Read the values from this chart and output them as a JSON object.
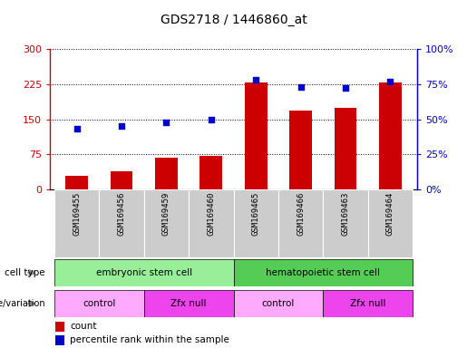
{
  "title": "GDS2718 / 1446860_at",
  "samples": [
    "GSM169455",
    "GSM169456",
    "GSM169459",
    "GSM169460",
    "GSM169465",
    "GSM169466",
    "GSM169463",
    "GSM169464"
  ],
  "counts": [
    30,
    38,
    68,
    72,
    228,
    168,
    175,
    228
  ],
  "percentile_ranks": [
    43,
    45,
    48,
    50,
    78,
    73,
    72,
    77
  ],
  "ylim_left": [
    0,
    300
  ],
  "ylim_right": [
    0,
    100
  ],
  "yticks_left": [
    0,
    75,
    150,
    225,
    300
  ],
  "yticks_right": [
    0,
    25,
    50,
    75,
    100
  ],
  "ytick_labels_left": [
    "0",
    "75",
    "150",
    "225",
    "300"
  ],
  "ytick_labels_right": [
    "0%",
    "25%",
    "50%",
    "75%",
    "100%"
  ],
  "bar_color": "#cc0000",
  "dot_color": "#0000cc",
  "cell_type_groups": [
    {
      "label": "embryonic stem cell",
      "start": 0,
      "end": 3,
      "color": "#99ee99"
    },
    {
      "label": "hematopoietic stem cell",
      "start": 4,
      "end": 7,
      "color": "#55cc55"
    }
  ],
  "genotype_groups": [
    {
      "label": "control",
      "start": 0,
      "end": 1,
      "color": "#ffaaff"
    },
    {
      "label": "Zfx null",
      "start": 2,
      "end": 3,
      "color": "#ee44ee"
    },
    {
      "label": "control",
      "start": 4,
      "end": 5,
      "color": "#ffaaff"
    },
    {
      "label": "Zfx null",
      "start": 6,
      "end": 7,
      "color": "#ee44ee"
    }
  ],
  "legend_count_label": "count",
  "legend_pct_label": "percentile rank within the sample",
  "background_color": "#ffffff",
  "tick_area_color": "#cccccc",
  "left_label_color": "#555555"
}
